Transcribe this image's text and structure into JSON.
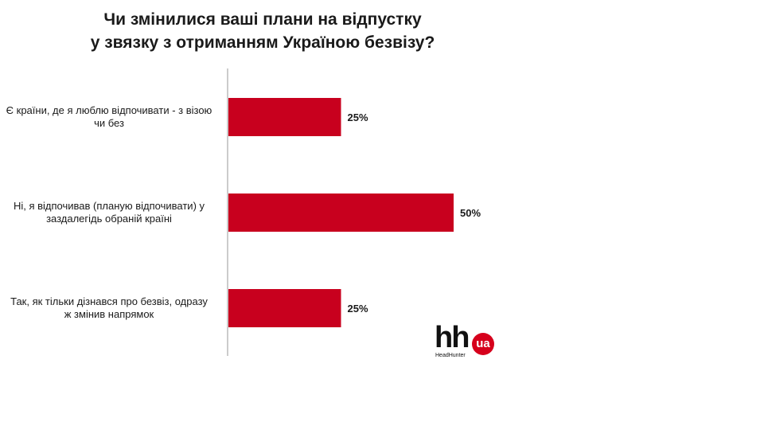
{
  "chart_data": {
    "type": "bar",
    "orientation": "horizontal",
    "title_lines": [
      "Чи змінилися ваші плани на відпустку",
      "у звязку з отриманням Україною безвізу?"
    ],
    "categories": [
      [
        "Є країни, де я люблю відпочивати - з візою",
        "чи без"
      ],
      [
        "Ні, я відпочивав (планую відпочивати) у",
        "заздалегідь обраній країні"
      ],
      [
        "Так, як тільки дізнався про безвіз, одразу",
        "ж змінив напрямок"
      ]
    ],
    "values": [
      25,
      50,
      25
    ],
    "value_labels": [
      "25%",
      "50%",
      "25%"
    ],
    "xlim": [
      0,
      100
    ],
    "grid": false,
    "legend": "none",
    "bar_color": "#c8001e",
    "axis_color": "#9a9a9a"
  },
  "logo": {
    "hh": "hh",
    "ua": "ua",
    "brand": "HeadHunter",
    "accent_color": "#d6001c"
  }
}
